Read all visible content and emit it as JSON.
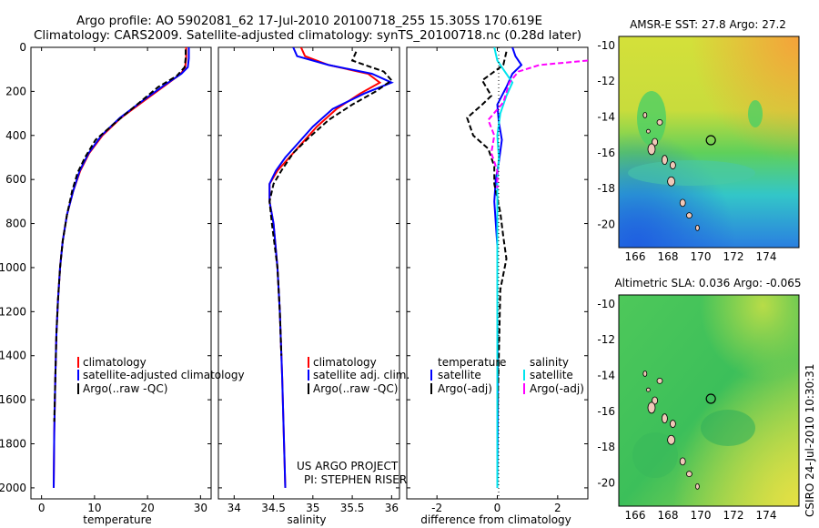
{
  "header": {
    "line1": "Argo profile: AO 5902081_62 17-Jul-2010 20100718_255 15.305S 170.619E",
    "line2": "Climatology: CARS2009. Satellite-adjusted climatology: synTS_20100718.nc (0.28d later)"
  },
  "colors": {
    "climatology": "#ff0000",
    "satellite": "#0000ff",
    "argo": "#000000",
    "sat_diff": "#00e5ee",
    "argo_adj": "#ff00ff"
  },
  "chart_data": [
    {
      "id": "temperature",
      "type": "line",
      "xlabel": "temperature",
      "ylabel": "",
      "xlim": [
        -2,
        32
      ],
      "ylim": [
        2050,
        0
      ],
      "xticks": [
        "0",
        "10",
        "20",
        "30"
      ],
      "xtick_values": [
        0,
        10,
        20,
        30
      ],
      "yticks": [
        "0",
        "200",
        "400",
        "600",
        "800",
        "1000",
        "1200",
        "1400",
        "1600",
        "1800",
        "2000"
      ],
      "ytick_values": [
        0,
        200,
        400,
        600,
        800,
        1000,
        1200,
        1400,
        1600,
        1800,
        2000
      ],
      "legend": [
        "climatology",
        "satellite-adjusted climatology",
        "Argo(..raw -QC)"
      ],
      "series": [
        {
          "name": "climatology",
          "color": "#ff0000",
          "dash": "",
          "x": [
            27.3,
            27.3,
            27.1,
            26.3,
            23.5,
            19.5,
            15.0,
            11.5,
            9.0,
            7.3,
            6.0,
            4.8,
            4.0,
            3.5,
            3.1,
            2.8,
            2.6,
            2.4,
            2.3
          ],
          "y": [
            0,
            50,
            90,
            120,
            170,
            240,
            320,
            400,
            480,
            560,
            650,
            760,
            880,
            1000,
            1150,
            1300,
            1500,
            1750,
            2000
          ]
        },
        {
          "name": "satellite-adjusted climatology",
          "color": "#0000ff",
          "dash": "",
          "x": [
            27.8,
            27.8,
            27.6,
            26.4,
            23.3,
            19.2,
            14.8,
            11.3,
            8.9,
            7.2,
            6.0,
            4.8,
            4.0,
            3.5,
            3.1,
            2.8,
            2.6,
            2.4,
            2.3
          ],
          "y": [
            0,
            50,
            90,
            120,
            170,
            240,
            320,
            400,
            480,
            560,
            650,
            760,
            880,
            1000,
            1150,
            1300,
            1500,
            1750,
            2000
          ]
        },
        {
          "name": "Argo(..raw -QC)",
          "color": "#000000",
          "dash": "6,3",
          "x": [
            27.2,
            27.2,
            27.0,
            25.5,
            22.0,
            18.5,
            14.0,
            10.2,
            8.2,
            6.8,
            5.8,
            4.8,
            4.0,
            3.5,
            3.1,
            2.8,
            2.6,
            2.4
          ],
          "y": [
            10,
            50,
            90,
            130,
            180,
            250,
            340,
            420,
            500,
            570,
            650,
            760,
            880,
            1000,
            1150,
            1300,
            1500,
            1700
          ]
        }
      ]
    },
    {
      "id": "salinity",
      "type": "line",
      "xlabel": "salinity",
      "ylabel": "",
      "xlim": [
        33.8,
        36.1
      ],
      "ylim": [
        2050,
        0
      ],
      "xticks": [
        "34",
        "34.5",
        "35",
        "35.5",
        "36"
      ],
      "xtick_values": [
        34,
        34.5,
        35,
        35.5,
        36
      ],
      "legend": [
        "climatology",
        "satellite adj. clim.",
        "Argo(..raw -QC)"
      ],
      "notes": [
        "US ARGO PROJECT",
        "PI: STEPHEN RISER"
      ],
      "series": [
        {
          "name": "climatology",
          "color": "#ff0000",
          "dash": "",
          "x": [
            34.85,
            34.9,
            35.2,
            35.7,
            35.85,
            35.6,
            35.3,
            35.05,
            34.85,
            34.7,
            34.55,
            34.45,
            34.45,
            34.5,
            34.55,
            34.58,
            34.61,
            34.63,
            34.65
          ],
          "y": [
            0,
            40,
            80,
            120,
            160,
            210,
            280,
            360,
            440,
            500,
            560,
            620,
            700,
            800,
            1000,
            1200,
            1500,
            1750,
            2000
          ]
        },
        {
          "name": "satellite adj. clim.",
          "color": "#0000ff",
          "dash": "",
          "x": [
            34.75,
            34.8,
            35.2,
            35.75,
            36.0,
            35.65,
            35.25,
            35.0,
            34.8,
            34.65,
            34.53,
            34.45,
            34.45,
            34.5,
            34.55,
            34.58,
            34.61,
            34.63,
            34.65
          ],
          "y": [
            0,
            40,
            80,
            120,
            160,
            210,
            280,
            360,
            440,
            500,
            560,
            620,
            700,
            800,
            1000,
            1200,
            1500,
            1750,
            2000
          ]
        },
        {
          "name": "Argo(..raw -QC)",
          "color": "#000000",
          "dash": "6,3",
          "x": [
            35.55,
            35.5,
            35.9,
            36.0,
            35.8,
            35.5,
            35.2,
            34.95,
            34.75,
            34.6,
            34.5,
            34.45,
            34.48,
            34.55,
            34.58,
            34.6
          ],
          "y": [
            20,
            60,
            110,
            150,
            200,
            260,
            330,
            410,
            480,
            560,
            620,
            700,
            800,
            1000,
            1200,
            1400
          ]
        }
      ]
    },
    {
      "id": "difference",
      "type": "line",
      "xlabel": "difference from climatology",
      "ylabel": "",
      "xlim": [
        -3,
        3
      ],
      "ylim": [
        2050,
        0
      ],
      "xticks": [
        "-2",
        "0",
        "2"
      ],
      "xtick_values": [
        -2,
        0,
        2
      ],
      "legend_groups": [
        {
          "title": "temperature",
          "items": [
            "satellite",
            "Argo(-adj)"
          ]
        },
        {
          "title": "salinity",
          "items": [
            "satellite",
            "Argo(-adj)"
          ]
        }
      ],
      "series": [
        {
          "name": "temperature satellite",
          "color": "#0000ff",
          "dash": "",
          "x": [
            0.5,
            0.6,
            0.8,
            0.5,
            0.3,
            0.0,
            0.05,
            0.15,
            0.05,
            -0.05,
            -0.1,
            0.0,
            0.0,
            0.02,
            0.0
          ],
          "y": [
            0,
            40,
            80,
            120,
            180,
            260,
            340,
            420,
            520,
            600,
            700,
            900,
            1200,
            1600,
            2000
          ]
        },
        {
          "name": "temperature Argo(-adj)",
          "color": "#000000",
          "dash": "6,3",
          "x": [
            0.3,
            0.2,
            -0.5,
            -0.2,
            -0.5,
            -1.0,
            -0.8,
            -0.3,
            -0.1,
            -0.1,
            0.1,
            0.2,
            0.3,
            0.1,
            0.05,
            0.0
          ],
          "y": [
            20,
            80,
            150,
            220,
            260,
            320,
            400,
            460,
            540,
            620,
            750,
            860,
            960,
            1100,
            1400,
            1700
          ]
        },
        {
          "name": "salinity satellite",
          "color": "#00e5ee",
          "dash": "",
          "x": [
            -0.1,
            0.0,
            0.2,
            0.5,
            0.3,
            0.1,
            0.0,
            0.05,
            0.0,
            0.0,
            0.0,
            0.0
          ],
          "y": [
            0,
            60,
            100,
            160,
            220,
            300,
            400,
            500,
            600,
            900,
            1400,
            2000
          ]
        },
        {
          "name": "salinity Argo(-adj)",
          "color": "#ff00ff",
          "dash": "6,3",
          "x": [
            3.0,
            1.4,
            0.7,
            0.4,
            0.2,
            -0.3,
            -0.1,
            -0.2,
            0.0,
            0.0
          ],
          "y": [
            60,
            80,
            110,
            160,
            250,
            330,
            400,
            480,
            560,
            640
          ]
        }
      ]
    },
    {
      "id": "sst-map",
      "type": "heatmap",
      "title": "AMSR-E SST: 27.8 Argo: 27.2",
      "xlim": [
        165,
        176
      ],
      "ylim": [
        -21.3,
        -9.5
      ],
      "xticks": [
        "166",
        "168",
        "170",
        "172",
        "174"
      ],
      "xtick_values": [
        166,
        168,
        170,
        172,
        174
      ],
      "yticks": [
        "-10",
        "-12",
        "-14",
        "-16",
        "-18",
        "-20"
      ],
      "ytick_values": [
        -10,
        -12,
        -14,
        -16,
        -18,
        -20
      ],
      "float_position": [
        170.62,
        -15.3
      ]
    },
    {
      "id": "sla-map",
      "type": "heatmap",
      "title": "Altimetric SLA: 0.036 Argo: -0.065",
      "xlim": [
        165,
        176
      ],
      "ylim": [
        -21.3,
        -9.5
      ],
      "xticks": [
        "166",
        "168",
        "170",
        "172",
        "174"
      ],
      "xtick_values": [
        166,
        168,
        170,
        172,
        174
      ],
      "yticks": [
        "-10",
        "-12",
        "-14",
        "-16",
        "-18",
        "-20"
      ],
      "ytick_values": [
        -10,
        -12,
        -14,
        -16,
        -18,
        -20
      ],
      "float_position": [
        170.62,
        -15.3
      ]
    }
  ],
  "stamp": "CSIRO 24-Jul-2010 10:30:31"
}
